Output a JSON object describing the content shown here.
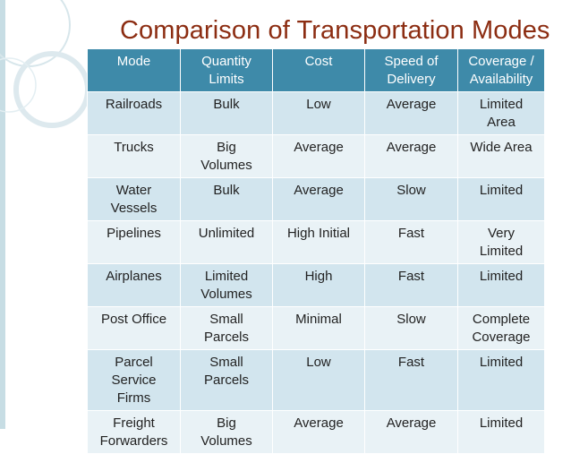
{
  "title": "Comparison of Transportation Modes",
  "colors": {
    "title": "#8c2d12",
    "header_bg": "#3e8aa9",
    "row_odd": "#d2e5ee",
    "row_even": "#e9f2f6"
  },
  "table": {
    "headers": [
      "Mode",
      "Quantity\nLimits",
      "Cost",
      "Speed of\nDelivery",
      "Coverage /\nAvailability"
    ],
    "rows": [
      [
        "Railroads",
        "Bulk",
        "Low",
        "Average",
        "Limited\nArea"
      ],
      [
        "Trucks",
        "Big\nVolumes",
        "Average",
        "Average",
        "Wide Area"
      ],
      [
        "Water\nVessels",
        "Bulk",
        "Average",
        "Slow",
        "Limited"
      ],
      [
        "Pipelines",
        "Unlimited",
        "High Initial",
        "Fast",
        "Very\nLimited"
      ],
      [
        "Airplanes",
        "Limited\nVolumes",
        "High",
        "Fast",
        "Limited"
      ],
      [
        "Post Office",
        "Small\nParcels",
        "Minimal",
        "Slow",
        "Complete\nCoverage"
      ],
      [
        "Parcel\nService\nFirms",
        "Small\nParcels",
        "Low",
        "Fast",
        "Limited"
      ],
      [
        "Freight\nForwarders",
        "Big\nVolumes",
        "Average",
        "Average",
        "Limited"
      ]
    ]
  }
}
